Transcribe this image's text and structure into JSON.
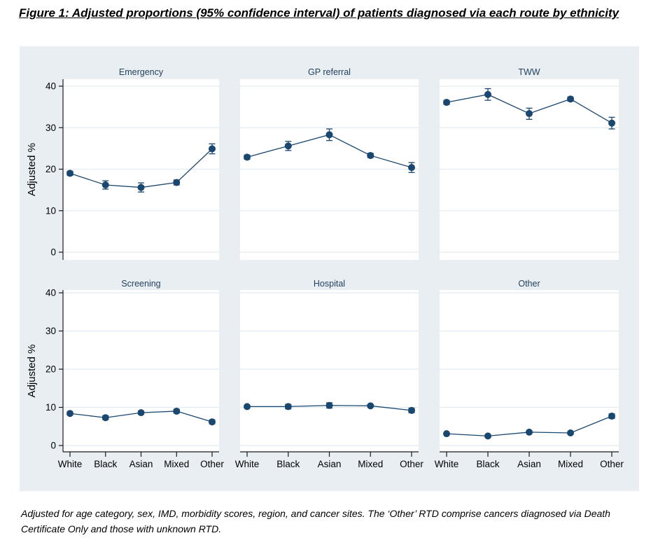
{
  "page": {
    "title": "Figure 1: Adjusted proportions (95% confidence interval) of patients diagnosed via each route by ethnicity",
    "footnote": "Adjusted for age category, sex, IMD, morbidity scores, region, and cancer sites. The ‘Other’ RTD comprise cancers diagnosed via Death Certificate Only and those with unknown RTD."
  },
  "colors": {
    "figure_background": "#e8eef2",
    "panel_background": "#ffffff",
    "gridline": "#e2ebf2",
    "series": "#1a476f",
    "panel_title": "#24415e",
    "axis": "#1a1a1a",
    "tick_label": "#000000"
  },
  "chart_data": {
    "type": "line",
    "layout": "small-multiples-2x3",
    "categories": [
      "White",
      "Black",
      "Asian",
      "Mixed",
      "Other"
    ],
    "ylabel": "Adjusted %",
    "ylim": [
      0,
      40
    ],
    "yticks": [
      0,
      10,
      20,
      30,
      40
    ],
    "grid": true,
    "error_bars": "95% CI",
    "panels": [
      {
        "title": "Emergency",
        "values": [
          19.0,
          16.2,
          15.6,
          16.8,
          24.9
        ],
        "ci_low": [
          18.5,
          15.2,
          14.5,
          16.2,
          23.7
        ],
        "ci_high": [
          19.5,
          17.2,
          16.7,
          17.4,
          26.1
        ]
      },
      {
        "title": "GP referral",
        "values": [
          22.9,
          25.6,
          28.3,
          23.3,
          20.4
        ],
        "ci_low": [
          22.4,
          24.5,
          26.9,
          22.8,
          19.2
        ],
        "ci_high": [
          23.4,
          26.7,
          29.7,
          23.8,
          21.6
        ]
      },
      {
        "title": "TWW",
        "values": [
          36.1,
          38.0,
          33.4,
          36.9,
          31.1
        ],
        "ci_low": [
          35.6,
          36.6,
          32.0,
          36.4,
          29.7
        ],
        "ci_high": [
          36.6,
          39.4,
          34.7,
          37.4,
          32.5
        ]
      },
      {
        "title": "Screening",
        "values": [
          8.4,
          7.3,
          8.6,
          9.0,
          6.2
        ],
        "ci_low": [
          8.0,
          6.8,
          8.2,
          8.5,
          5.7
        ],
        "ci_high": [
          8.8,
          7.8,
          9.0,
          9.5,
          6.7
        ]
      },
      {
        "title": "Hospital",
        "values": [
          10.2,
          10.2,
          10.5,
          10.4,
          9.2
        ],
        "ci_low": [
          9.9,
          9.6,
          9.8,
          10.1,
          8.6
        ],
        "ci_high": [
          10.5,
          10.8,
          11.2,
          10.7,
          9.8
        ]
      },
      {
        "title": "Other",
        "values": [
          3.1,
          2.5,
          3.5,
          3.3,
          7.7
        ],
        "ci_low": [
          2.9,
          2.2,
          3.2,
          3.0,
          7.1
        ],
        "ci_high": [
          3.3,
          2.8,
          3.8,
          3.6,
          8.3
        ]
      }
    ]
  }
}
